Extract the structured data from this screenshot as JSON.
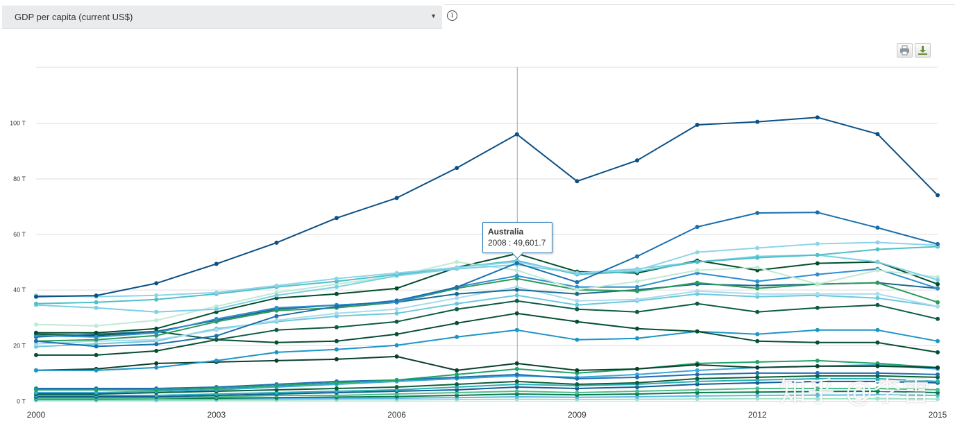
{
  "indicator_selector": {
    "label": "GDP per capita (current US$)",
    "caret": "▼"
  },
  "info_button": {
    "glyph": "i",
    "icon": "info-icon"
  },
  "toolbar": {
    "print_icon": "print-icon",
    "download_icon": "download-icon"
  },
  "tooltip": {
    "country": "Australia",
    "value_text": "2008 : 49,601.7"
  },
  "watermark": "知乎 @李雷",
  "colors": {
    "grid": "#dddddd",
    "crosshair": "#9aa4ad",
    "tooltip_border": "#2a7ab9"
  },
  "chart_data": {
    "type": "line",
    "title": "",
    "xlabel": "",
    "ylabel": "",
    "x": [
      2000,
      2001,
      2002,
      2003,
      2004,
      2005,
      2006,
      2007,
      2008,
      2009,
      2010,
      2011,
      2012,
      2013,
      2014,
      2015
    ],
    "x_ticks": [
      2000,
      2003,
      2006,
      2009,
      2012,
      2015
    ],
    "x_tick_labels": [
      "2000",
      "2003",
      "2006",
      "2009",
      "2012",
      "2015"
    ],
    "y_ticks": [
      0,
      20,
      40,
      60,
      80,
      100
    ],
    "y_tick_labels": [
      "0 T",
      "20 T",
      "40 T",
      "60 T",
      "80 T",
      "100 T"
    ],
    "ylim": [
      0,
      120
    ],
    "grid": true,
    "legend": "none",
    "crosshair_x": 2008,
    "series": [
      {
        "color": "#0b4f84",
        "values": [
          37.5,
          37.9,
          42.3,
          49.3,
          56.9,
          65.8,
          73.0,
          83.8,
          95.9,
          79.0,
          86.5,
          99.3,
          100.4,
          102.0,
          96.0,
          74.0
        ]
      },
      {
        "color": "#1a6fad",
        "values": [
          21.5,
          19.6,
          20.4,
          23.4,
          30.5,
          34.0,
          36.1,
          40.9,
          49.6,
          42.7,
          52.0,
          62.6,
          67.6,
          67.8,
          62.3,
          56.4
        ]
      },
      {
        "color": "#8fd3e8",
        "values": [
          38.0,
          37.5,
          38.0,
          39.0,
          41.5,
          44.0,
          46.0,
          48.0,
          50.0,
          46.0,
          47.0,
          53.5,
          55.0,
          56.5,
          57.0,
          56.0
        ]
      },
      {
        "color": "#4fc0c9",
        "values": [
          35.0,
          35.5,
          36.5,
          38.5,
          41.0,
          43.0,
          45.5,
          48.0,
          50.5,
          45.5,
          46.5,
          50.0,
          51.5,
          52.5,
          54.5,
          55.5
        ]
      },
      {
        "color": "#7ad0e6",
        "values": [
          34.5,
          33.5,
          32.0,
          33.0,
          38.0,
          41.0,
          45.0,
          47.5,
          49.0,
          46.0,
          47.5,
          50.0,
          52.0,
          52.5,
          50.0,
          43.5
        ]
      },
      {
        "color": "#bfead3",
        "values": [
          27.5,
          27.0,
          29.0,
          34.0,
          39.0,
          42.0,
          45.0,
          50.0,
          47.0,
          40.0,
          43.0,
          47.0,
          48.0,
          42.0,
          47.0,
          44.5
        ]
      },
      {
        "color": "#004d2a",
        "values": [
          24.5,
          24.5,
          26.0,
          32.0,
          37.0,
          38.5,
          40.5,
          48.0,
          53.0,
          46.5,
          46.0,
          50.5,
          47.0,
          49.5,
          50.0,
          42.0
        ]
      },
      {
        "color": "#2f8ecf",
        "values": [
          23.5,
          23.0,
          24.5,
          29.5,
          33.5,
          34.5,
          35.5,
          41.0,
          45.0,
          41.0,
          41.0,
          46.0,
          43.0,
          45.5,
          47.5,
          40.5
        ]
      },
      {
        "color": "#2b9a5b",
        "values": [
          21.5,
          22.0,
          23.5,
          28.5,
          32.5,
          33.5,
          35.5,
          40.5,
          44.0,
          40.0,
          39.5,
          42.5,
          40.5,
          42.0,
          42.5,
          35.5
        ]
      },
      {
        "color": "#176a8f",
        "values": [
          23.0,
          24.0,
          25.0,
          29.0,
          33.0,
          34.5,
          35.5,
          38.5,
          40.0,
          38.5,
          40.0,
          42.0,
          41.5,
          42.0,
          42.5,
          40.5
        ]
      },
      {
        "color": "#a9dbef",
        "values": [
          20.5,
          21.5,
          22.0,
          25.5,
          29.0,
          31.5,
          33.0,
          37.0,
          41.0,
          36.0,
          36.5,
          39.5,
          38.5,
          38.5,
          38.5,
          34.0
        ]
      },
      {
        "color": "#6cc8dc",
        "values": [
          19.5,
          20.5,
          21.5,
          26.0,
          28.5,
          30.5,
          31.5,
          35.0,
          38.0,
          34.5,
          36.0,
          38.5,
          37.5,
          38.0,
          37.0,
          34.0
        ]
      },
      {
        "color": "#0c5a45",
        "values": [
          24.0,
          23.5,
          25.0,
          22.0,
          25.5,
          26.5,
          28.5,
          33.0,
          36.0,
          33.0,
          32.0,
          35.0,
          32.0,
          33.5,
          34.5,
          29.5
        ]
      },
      {
        "color": "#064d32",
        "values": [
          16.5,
          16.5,
          18.0,
          22.0,
          21.0,
          21.5,
          24.0,
          28.0,
          31.5,
          28.5,
          26.0,
          25.0,
          21.5,
          21.0,
          21.0,
          17.5
        ]
      },
      {
        "color": "#1c94c8",
        "values": [
          11.0,
          11.0,
          12.0,
          14.5,
          17.5,
          18.5,
          20.0,
          23.0,
          25.5,
          22.0,
          22.5,
          25.0,
          24.0,
          25.5,
          25.5,
          21.5
        ]
      },
      {
        "color": "#0a3f2e",
        "values": [
          11.0,
          11.5,
          13.5,
          14.0,
          14.5,
          15.0,
          16.0,
          11.0,
          13.5,
          11.0,
          11.5,
          13.0,
          12.0,
          12.5,
          12.5,
          12.0
        ]
      },
      {
        "color": "#1da367",
        "values": [
          4.0,
          4.0,
          4.0,
          4.5,
          5.5,
          6.5,
          7.5,
          9.5,
          11.5,
          10.0,
          11.5,
          13.5,
          14.0,
          14.5,
          13.5,
          12.0
        ]
      },
      {
        "color": "#1f6fb2",
        "values": [
          4.5,
          4.5,
          4.5,
          5.0,
          6.0,
          7.0,
          7.5,
          8.5,
          9.5,
          8.0,
          8.5,
          9.5,
          10.0,
          10.0,
          10.0,
          9.5
        ]
      },
      {
        "color": "#3aa7d6",
        "values": [
          3.0,
          3.0,
          3.5,
          4.0,
          5.0,
          6.0,
          7.0,
          8.0,
          9.0,
          8.5,
          9.5,
          11.0,
          12.0,
          12.5,
          13.0,
          11.5
        ]
      },
      {
        "color": "#0d5e38",
        "values": [
          2.5,
          2.5,
          3.0,
          3.5,
          4.0,
          4.5,
          5.0,
          6.0,
          7.0,
          6.0,
          6.5,
          8.0,
          8.5,
          9.0,
          9.0,
          8.5
        ]
      },
      {
        "color": "#27b0b8",
        "values": [
          2.0,
          2.0,
          2.0,
          2.5,
          3.0,
          3.5,
          4.0,
          5.0,
          6.0,
          5.5,
          6.0,
          7.0,
          7.5,
          8.0,
          8.0,
          7.0
        ]
      },
      {
        "color": "#155a96",
        "values": [
          1.5,
          1.5,
          1.5,
          2.0,
          2.5,
          3.0,
          3.5,
          4.0,
          5.0,
          4.5,
          5.0,
          6.0,
          6.5,
          7.0,
          7.0,
          6.5
        ]
      },
      {
        "color": "#4cbf8d",
        "values": [
          1.0,
          1.0,
          1.0,
          1.5,
          2.0,
          2.0,
          2.5,
          3.0,
          3.5,
          3.0,
          3.5,
          4.0,
          4.5,
          4.5,
          4.5,
          4.0
        ]
      },
      {
        "color": "#0b7a4a",
        "values": [
          0.8,
          0.8,
          1.0,
          1.0,
          1.2,
          1.4,
          1.6,
          2.0,
          2.5,
          2.2,
          2.5,
          3.0,
          3.2,
          3.4,
          3.5,
          3.0
        ]
      },
      {
        "color": "#5fb8e6",
        "values": [
          0.5,
          0.5,
          0.6,
          0.7,
          0.8,
          0.9,
          1.0,
          1.2,
          1.5,
          1.3,
          1.5,
          1.8,
          2.0,
          2.1,
          2.2,
          2.0
        ]
      },
      {
        "color": "#9ee3c4",
        "values": [
          0.2,
          0.2,
          0.2,
          0.3,
          0.3,
          0.4,
          0.4,
          0.5,
          0.6,
          0.5,
          0.6,
          0.7,
          0.8,
          0.8,
          0.8,
          0.7
        ]
      }
    ]
  }
}
